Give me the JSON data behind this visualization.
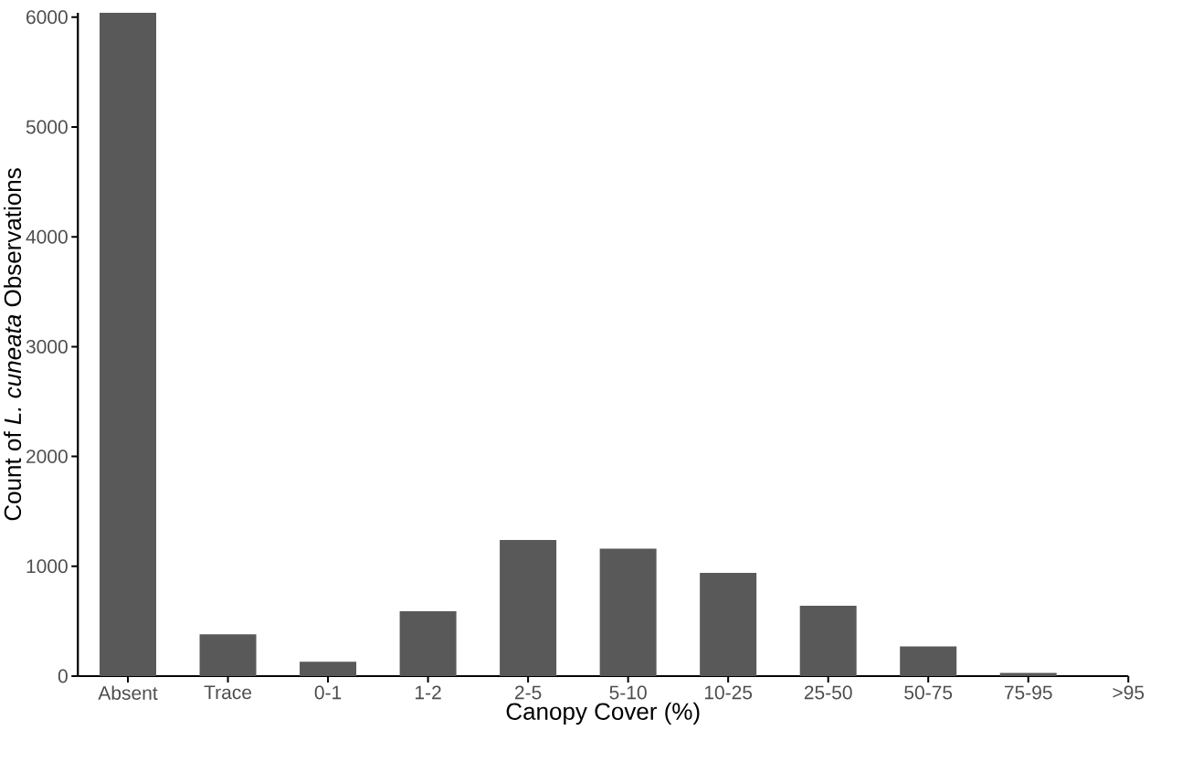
{
  "chart_data": {
    "type": "bar",
    "xlabel": "Canopy Cover (%)",
    "ylabel": "Count of *L. cuneata* Observations",
    "categories": [
      "Absent",
      "Trace",
      "0-1",
      "1-2",
      "2-5",
      "5-10",
      "10-25",
      "25-50",
      "50-75",
      "75-95",
      ">95"
    ],
    "values": [
      6040,
      380,
      130,
      590,
      1240,
      1160,
      940,
      640,
      270,
      30,
      0
    ],
    "color": "#595959",
    "ylim": [
      0,
      6040
    ],
    "yticks": [
      0,
      1000,
      2000,
      3000,
      4000,
      5000,
      6000
    ],
    "grid": false
  }
}
